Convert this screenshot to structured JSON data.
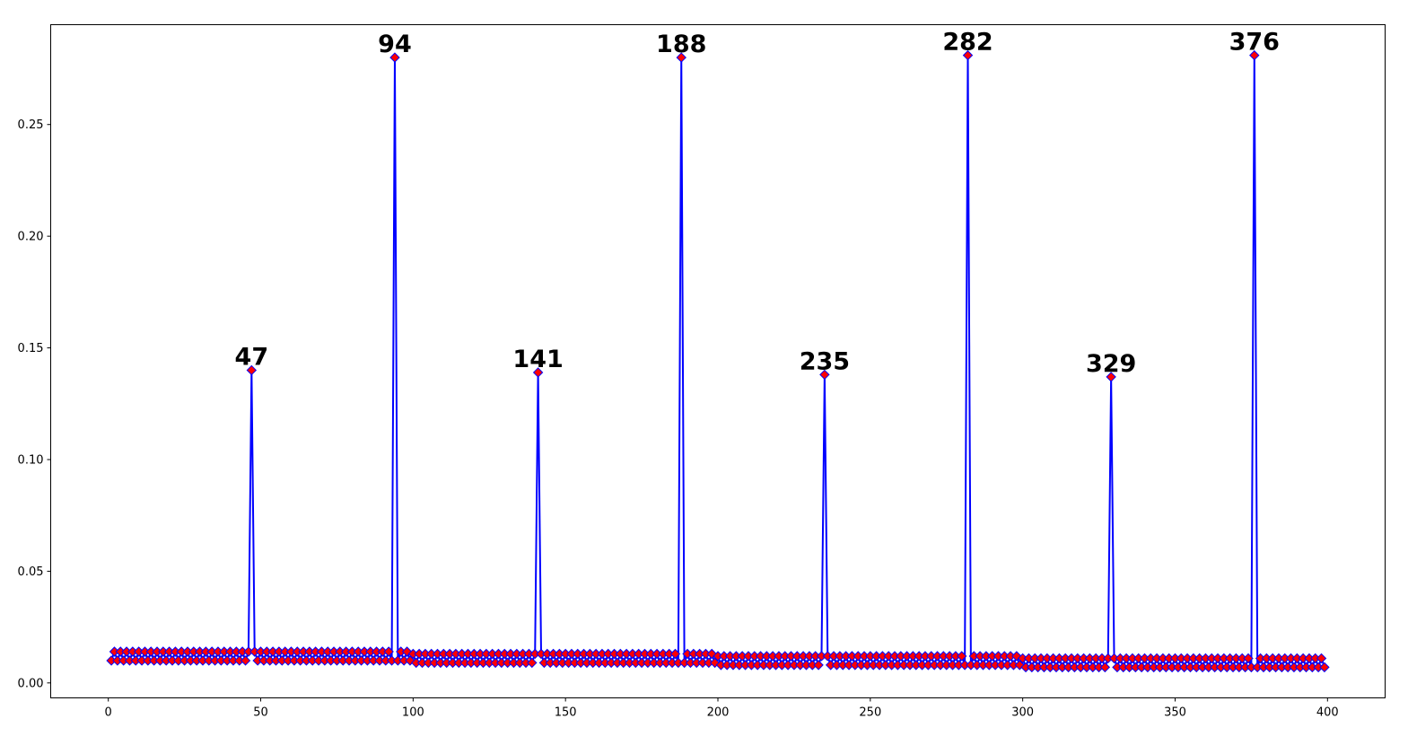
{
  "chart_data": {
    "type": "line",
    "x": [
      1,
      2,
      3,
      4,
      5,
      6,
      7,
      8,
      9,
      10,
      11,
      12,
      13,
      14,
      15,
      16,
      17,
      18,
      19,
      20,
      21,
      22,
      23,
      24,
      25,
      26,
      27,
      28,
      29,
      30,
      31,
      32,
      33,
      34,
      35,
      36,
      37,
      38,
      39,
      40,
      41,
      42,
      43,
      44,
      45,
      46,
      47,
      48,
      49,
      50,
      51,
      52,
      53,
      54,
      55,
      56,
      57,
      58,
      59,
      60,
      61,
      62,
      63,
      64,
      65,
      66,
      67,
      68,
      69,
      70,
      71,
      72,
      73,
      74,
      75,
      76,
      77,
      78,
      79,
      80,
      81,
      82,
      83,
      84,
      85,
      86,
      87,
      88,
      89,
      90,
      91,
      92,
      93,
      94,
      95,
      96,
      97,
      98,
      99,
      100,
      101,
      102,
      103,
      104,
      105,
      106,
      107,
      108,
      109,
      110,
      111,
      112,
      113,
      114,
      115,
      116,
      117,
      118,
      119,
      120,
      121,
      122,
      123,
      124,
      125,
      126,
      127,
      128,
      129,
      130,
      131,
      132,
      133,
      134,
      135,
      136,
      137,
      138,
      139,
      140,
      141,
      142,
      143,
      144,
      145,
      146,
      147,
      148,
      149,
      150,
      151,
      152,
      153,
      154,
      155,
      156,
      157,
      158,
      159,
      160,
      161,
      162,
      163,
      164,
      165,
      166,
      167,
      168,
      169,
      170,
      171,
      172,
      173,
      174,
      175,
      176,
      177,
      178,
      179,
      180,
      181,
      182,
      183,
      184,
      185,
      186,
      187,
      188,
      189,
      190,
      191,
      192,
      193,
      194,
      195,
      196,
      197,
      198,
      199,
      200,
      201,
      202,
      203,
      204,
      205,
      206,
      207,
      208,
      209,
      210,
      211,
      212,
      213,
      214,
      215,
      216,
      217,
      218,
      219,
      220,
      221,
      222,
      223,
      224,
      225,
      226,
      227,
      228,
      229,
      230,
      231,
      232,
      233,
      234,
      235,
      236,
      237,
      238,
      239,
      240,
      241,
      242,
      243,
      244,
      245,
      246,
      247,
      248,
      249,
      250,
      251,
      252,
      253,
      254,
      255,
      256,
      257,
      258,
      259,
      260,
      261,
      262,
      263,
      264,
      265,
      266,
      267,
      268,
      269,
      270,
      271,
      272,
      273,
      274,
      275,
      276,
      277,
      278,
      279,
      280,
      281,
      282,
      283,
      284,
      285,
      286,
      287,
      288,
      289,
      290,
      291,
      292,
      293,
      294,
      295,
      296,
      297,
      298,
      299,
      300,
      301,
      302,
      303,
      304,
      305,
      306,
      307,
      308,
      309,
      310,
      311,
      312,
      313,
      314,
      315,
      316,
      317,
      318,
      319,
      320,
      321,
      322,
      323,
      324,
      325,
      326,
      327,
      328,
      329,
      330,
      331,
      332,
      333,
      334,
      335,
      336,
      337,
      338,
      339,
      340,
      341,
      342,
      343,
      344,
      345,
      346,
      347,
      348,
      349,
      350,
      351,
      352,
      353,
      354,
      355,
      356,
      357,
      358,
      359,
      360,
      361,
      362,
      363,
      364,
      365,
      366,
      367,
      368,
      369,
      370,
      371,
      372,
      373,
      374,
      375,
      376,
      377,
      378,
      379,
      380,
      381,
      382,
      383,
      384,
      385,
      386,
      387,
      388,
      389,
      390,
      391,
      392,
      393,
      394,
      395,
      396,
      397,
      398,
      399
    ],
    "series": [
      {
        "color": "#0000ff",
        "marker_color": "#ff0000",
        "values": [
          0.01,
          0.014,
          0.01,
          0.014,
          0.01,
          0.014,
          0.01,
          0.014,
          0.01,
          0.014,
          0.01,
          0.014,
          0.01,
          0.014,
          0.01,
          0.014,
          0.01,
          0.014,
          0.01,
          0.014,
          0.01,
          0.014,
          0.01,
          0.014,
          0.01,
          0.014,
          0.01,
          0.014,
          0.01,
          0.014,
          0.01,
          0.014,
          0.01,
          0.014,
          0.01,
          0.014,
          0.01,
          0.014,
          0.01,
          0.014,
          0.01,
          0.014,
          0.01,
          0.014,
          0.01,
          0.014,
          0.14,
          0.014,
          0.01,
          0.014,
          0.01,
          0.014,
          0.01,
          0.014,
          0.01,
          0.014,
          0.01,
          0.014,
          0.01,
          0.014,
          0.01,
          0.014,
          0.01,
          0.014,
          0.01,
          0.014,
          0.01,
          0.014,
          0.01,
          0.014,
          0.01,
          0.014,
          0.01,
          0.014,
          0.01,
          0.014,
          0.01,
          0.014,
          0.01,
          0.014,
          0.01,
          0.014,
          0.01,
          0.014,
          0.01,
          0.014,
          0.01,
          0.014,
          0.01,
          0.014,
          0.01,
          0.014,
          0.01,
          0.28,
          0.01,
          0.014,
          0.01,
          0.014,
          0.01,
          0.013,
          0.009,
          0.013,
          0.009,
          0.013,
          0.009,
          0.013,
          0.009,
          0.013,
          0.009,
          0.013,
          0.009,
          0.013,
          0.009,
          0.013,
          0.009,
          0.013,
          0.009,
          0.013,
          0.009,
          0.013,
          0.009,
          0.013,
          0.009,
          0.013,
          0.009,
          0.013,
          0.009,
          0.013,
          0.009,
          0.013,
          0.009,
          0.013,
          0.009,
          0.013,
          0.009,
          0.013,
          0.009,
          0.013,
          0.009,
          0.013,
          0.139,
          0.013,
          0.009,
          0.013,
          0.009,
          0.013,
          0.009,
          0.013,
          0.009,
          0.013,
          0.009,
          0.013,
          0.009,
          0.013,
          0.009,
          0.013,
          0.009,
          0.013,
          0.009,
          0.013,
          0.009,
          0.013,
          0.009,
          0.013,
          0.009,
          0.013,
          0.009,
          0.013,
          0.009,
          0.013,
          0.009,
          0.013,
          0.009,
          0.013,
          0.009,
          0.013,
          0.009,
          0.013,
          0.009,
          0.013,
          0.009,
          0.013,
          0.009,
          0.013,
          0.009,
          0.013,
          0.009,
          0.28,
          0.009,
          0.013,
          0.009,
          0.013,
          0.009,
          0.013,
          0.009,
          0.013,
          0.009,
          0.013,
          0.009,
          0.012,
          0.008,
          0.012,
          0.008,
          0.012,
          0.008,
          0.012,
          0.008,
          0.012,
          0.008,
          0.012,
          0.008,
          0.012,
          0.008,
          0.012,
          0.008,
          0.012,
          0.008,
          0.012,
          0.008,
          0.012,
          0.008,
          0.012,
          0.008,
          0.012,
          0.008,
          0.012,
          0.008,
          0.012,
          0.008,
          0.012,
          0.008,
          0.012,
          0.008,
          0.012,
          0.138,
          0.012,
          0.008,
          0.012,
          0.008,
          0.012,
          0.008,
          0.012,
          0.008,
          0.012,
          0.008,
          0.012,
          0.008,
          0.012,
          0.008,
          0.012,
          0.008,
          0.012,
          0.008,
          0.012,
          0.008,
          0.012,
          0.008,
          0.012,
          0.008,
          0.012,
          0.008,
          0.012,
          0.008,
          0.012,
          0.008,
          0.012,
          0.008,
          0.012,
          0.008,
          0.012,
          0.008,
          0.012,
          0.008,
          0.012,
          0.008,
          0.012,
          0.008,
          0.012,
          0.008,
          0.012,
          0.008,
          0.281,
          0.008,
          0.012,
          0.008,
          0.012,
          0.008,
          0.012,
          0.008,
          0.012,
          0.008,
          0.012,
          0.008,
          0.012,
          0.008,
          0.012,
          0.008,
          0.012,
          0.008,
          0.011,
          0.007,
          0.011,
          0.007,
          0.011,
          0.007,
          0.011,
          0.007,
          0.011,
          0.007,
          0.011,
          0.007,
          0.011,
          0.007,
          0.011,
          0.007,
          0.011,
          0.007,
          0.011,
          0.007,
          0.011,
          0.007,
          0.011,
          0.007,
          0.011,
          0.007,
          0.011,
          0.007,
          0.011,
          0.137,
          0.011,
          0.007,
          0.011,
          0.007,
          0.011,
          0.007,
          0.011,
          0.007,
          0.011,
          0.007,
          0.011,
          0.007,
          0.011,
          0.007,
          0.011,
          0.007,
          0.011,
          0.007,
          0.011,
          0.007,
          0.011,
          0.007,
          0.011,
          0.007,
          0.011,
          0.007,
          0.011,
          0.007,
          0.011,
          0.007,
          0.011,
          0.007,
          0.011,
          0.007,
          0.011,
          0.007,
          0.011,
          0.007,
          0.011,
          0.007,
          0.011,
          0.007,
          0.011,
          0.007,
          0.011,
          0.007,
          0.281,
          0.007,
          0.011,
          0.007,
          0.011,
          0.007,
          0.011,
          0.007,
          0.011,
          0.007,
          0.011,
          0.007,
          0.011,
          0.007,
          0.011,
          0.007,
          0.011,
          0.007,
          0.011,
          0.007,
          0.011,
          0.007,
          0.011,
          0.007
        ]
      }
    ],
    "annotations": [
      "47",
      "94",
      "141",
      "188",
      "235",
      "282",
      "329",
      "376"
    ],
    "xlim": [
      -18.9,
      418.9
    ],
    "xticks": [
      0,
      50,
      100,
      150,
      200,
      250,
      300,
      350,
      400
    ],
    "ylim": [
      -0.0067,
      0.2947
    ],
    "yticks": [
      {
        "value": 0,
        "label": "0.00"
      },
      {
        "value": 0.05,
        "label": "0.05"
      },
      {
        "value": 0.1,
        "label": "0.10"
      },
      {
        "value": 0.15,
        "label": "0.15"
      },
      {
        "value": 0.2,
        "label": "0.20"
      },
      {
        "value": 0.25,
        "label": "0.25"
      }
    ],
    "grid": false
  }
}
